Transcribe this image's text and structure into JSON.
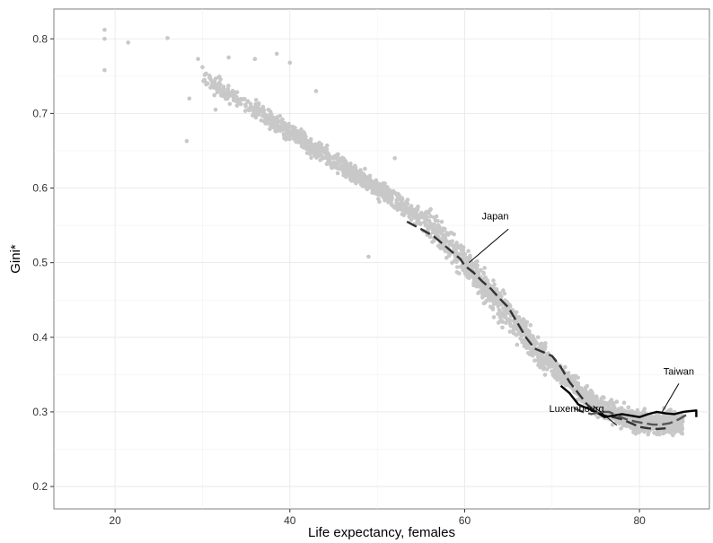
{
  "chart_data": {
    "type": "scatter",
    "title": "",
    "xlabel": "Life expectancy, females",
    "ylabel": "Gini*",
    "xlim": [
      13,
      88
    ],
    "ylim": [
      0.17,
      0.84
    ],
    "xticks": [
      20,
      40,
      60,
      80
    ],
    "yticks": [
      0.2,
      0.3,
      0.4,
      0.5,
      0.6,
      0.7,
      0.8
    ],
    "xtick_labels": [
      "20",
      "40",
      "60",
      "80"
    ],
    "ytick_labels": [
      "0.2",
      "0.3",
      "0.4",
      "0.5",
      "0.6",
      "0.7",
      "0.8"
    ],
    "grid": true,
    "point_color": "#c8c8c8",
    "trend": [
      {
        "x": 19,
        "y": 0.8
      },
      {
        "x": 30,
        "y": 0.75
      },
      {
        "x": 40,
        "y": 0.675
      },
      {
        "x": 50,
        "y": 0.6
      },
      {
        "x": 55,
        "y": 0.56
      },
      {
        "x": 60,
        "y": 0.5
      },
      {
        "x": 65,
        "y": 0.43
      },
      {
        "x": 70,
        "y": 0.36
      },
      {
        "x": 75,
        "y": 0.31
      },
      {
        "x": 80,
        "y": 0.285
      },
      {
        "x": 84,
        "y": 0.285
      }
    ],
    "outliers": [
      {
        "x": 18.8,
        "y": 0.812
      },
      {
        "x": 18.8,
        "y": 0.8
      },
      {
        "x": 18.8,
        "y": 0.758
      },
      {
        "x": 21.5,
        "y": 0.795
      },
      {
        "x": 26,
        "y": 0.801
      },
      {
        "x": 28.2,
        "y": 0.663
      },
      {
        "x": 28.5,
        "y": 0.72
      },
      {
        "x": 29.5,
        "y": 0.773
      },
      {
        "x": 30,
        "y": 0.762
      },
      {
        "x": 31.5,
        "y": 0.705
      },
      {
        "x": 33,
        "y": 0.775
      },
      {
        "x": 36,
        "y": 0.773
      },
      {
        "x": 38.5,
        "y": 0.78
      },
      {
        "x": 40,
        "y": 0.768
      },
      {
        "x": 43,
        "y": 0.73
      },
      {
        "x": 49,
        "y": 0.508
      },
      {
        "x": 52,
        "y": 0.64
      }
    ],
    "series": [
      {
        "name": "Japan",
        "style": "dashed",
        "color": "#333333",
        "points": [
          {
            "x": 53.4,
            "y": 0.555
          },
          {
            "x": 55,
            "y": 0.545
          },
          {
            "x": 56.5,
            "y": 0.535
          },
          {
            "x": 58,
            "y": 0.52
          },
          {
            "x": 59.5,
            "y": 0.505
          },
          {
            "x": 60,
            "y": 0.496
          },
          {
            "x": 61,
            "y": 0.487
          },
          {
            "x": 62,
            "y": 0.475
          },
          {
            "x": 63,
            "y": 0.465
          },
          {
            "x": 64,
            "y": 0.452
          },
          {
            "x": 65,
            "y": 0.44
          },
          {
            "x": 66,
            "y": 0.42
          },
          {
            "x": 67,
            "y": 0.4
          },
          {
            "x": 68,
            "y": 0.385
          },
          {
            "x": 69,
            "y": 0.38
          },
          {
            "x": 70,
            "y": 0.375
          },
          {
            "x": 71,
            "y": 0.36
          },
          {
            "x": 72,
            "y": 0.34
          },
          {
            "x": 73,
            "y": 0.325
          },
          {
            "x": 74,
            "y": 0.31
          },
          {
            "x": 75,
            "y": 0.3
          },
          {
            "x": 76,
            "y": 0.295
          },
          {
            "x": 77,
            "y": 0.293
          },
          {
            "x": 78,
            "y": 0.29
          },
          {
            "x": 79,
            "y": 0.285
          },
          {
            "x": 80,
            "y": 0.28
          },
          {
            "x": 81,
            "y": 0.278
          },
          {
            "x": 82,
            "y": 0.277
          },
          {
            "x": 83,
            "y": 0.278
          }
        ]
      },
      {
        "name": "Taiwan",
        "style": "solid",
        "color": "#000000",
        "points": [
          {
            "x": 71,
            "y": 0.335
          },
          {
            "x": 72,
            "y": 0.325
          },
          {
            "x": 73,
            "y": 0.31
          },
          {
            "x": 74,
            "y": 0.305
          },
          {
            "x": 75,
            "y": 0.3
          },
          {
            "x": 76,
            "y": 0.293
          },
          {
            "x": 77,
            "y": 0.295
          },
          {
            "x": 78,
            "y": 0.297
          },
          {
            "x": 79,
            "y": 0.295
          },
          {
            "x": 80,
            "y": 0.293
          },
          {
            "x": 81,
            "y": 0.297
          },
          {
            "x": 82,
            "y": 0.3
          },
          {
            "x": 83,
            "y": 0.298
          },
          {
            "x": 84,
            "y": 0.297
          },
          {
            "x": 85,
            "y": 0.3
          },
          {
            "x": 86.5,
            "y": 0.302
          },
          {
            "x": 86.5,
            "y": 0.293
          }
        ]
      },
      {
        "name": "Luxembourg",
        "style": "dashed",
        "color": "#555555",
        "points": [
          {
            "x": 72.5,
            "y": 0.305
          },
          {
            "x": 73.5,
            "y": 0.3
          },
          {
            "x": 74.5,
            "y": 0.297
          },
          {
            "x": 75.5,
            "y": 0.3
          },
          {
            "x": 76.5,
            "y": 0.3
          },
          {
            "x": 77.5,
            "y": 0.295
          },
          {
            "x": 78.5,
            "y": 0.29
          },
          {
            "x": 79.5,
            "y": 0.287
          },
          {
            "x": 80.5,
            "y": 0.285
          },
          {
            "x": 81.5,
            "y": 0.283
          },
          {
            "x": 82.5,
            "y": 0.283
          },
          {
            "x": 83.5,
            "y": 0.285
          },
          {
            "x": 84.5,
            "y": 0.29
          },
          {
            "x": 85.5,
            "y": 0.297
          }
        ]
      }
    ],
    "annotations": [
      {
        "text": "Japan",
        "label_x": 63.5,
        "label_y": 0.558,
        "to_x": 60.5,
        "to_y": 0.5,
        "from_x": 65,
        "from_y": 0.545
      },
      {
        "text": "Taiwan",
        "label_x": 84.5,
        "label_y": 0.35,
        "to_x": 82.6,
        "to_y": 0.3,
        "from_x": 84.5,
        "from_y": 0.338
      },
      {
        "text": "Luxembourg",
        "label_x": 72.8,
        "label_y": 0.3,
        "to_x": 77.4,
        "to_y": 0.282,
        "from_x": 74.7,
        "from_y": 0.308
      }
    ]
  }
}
